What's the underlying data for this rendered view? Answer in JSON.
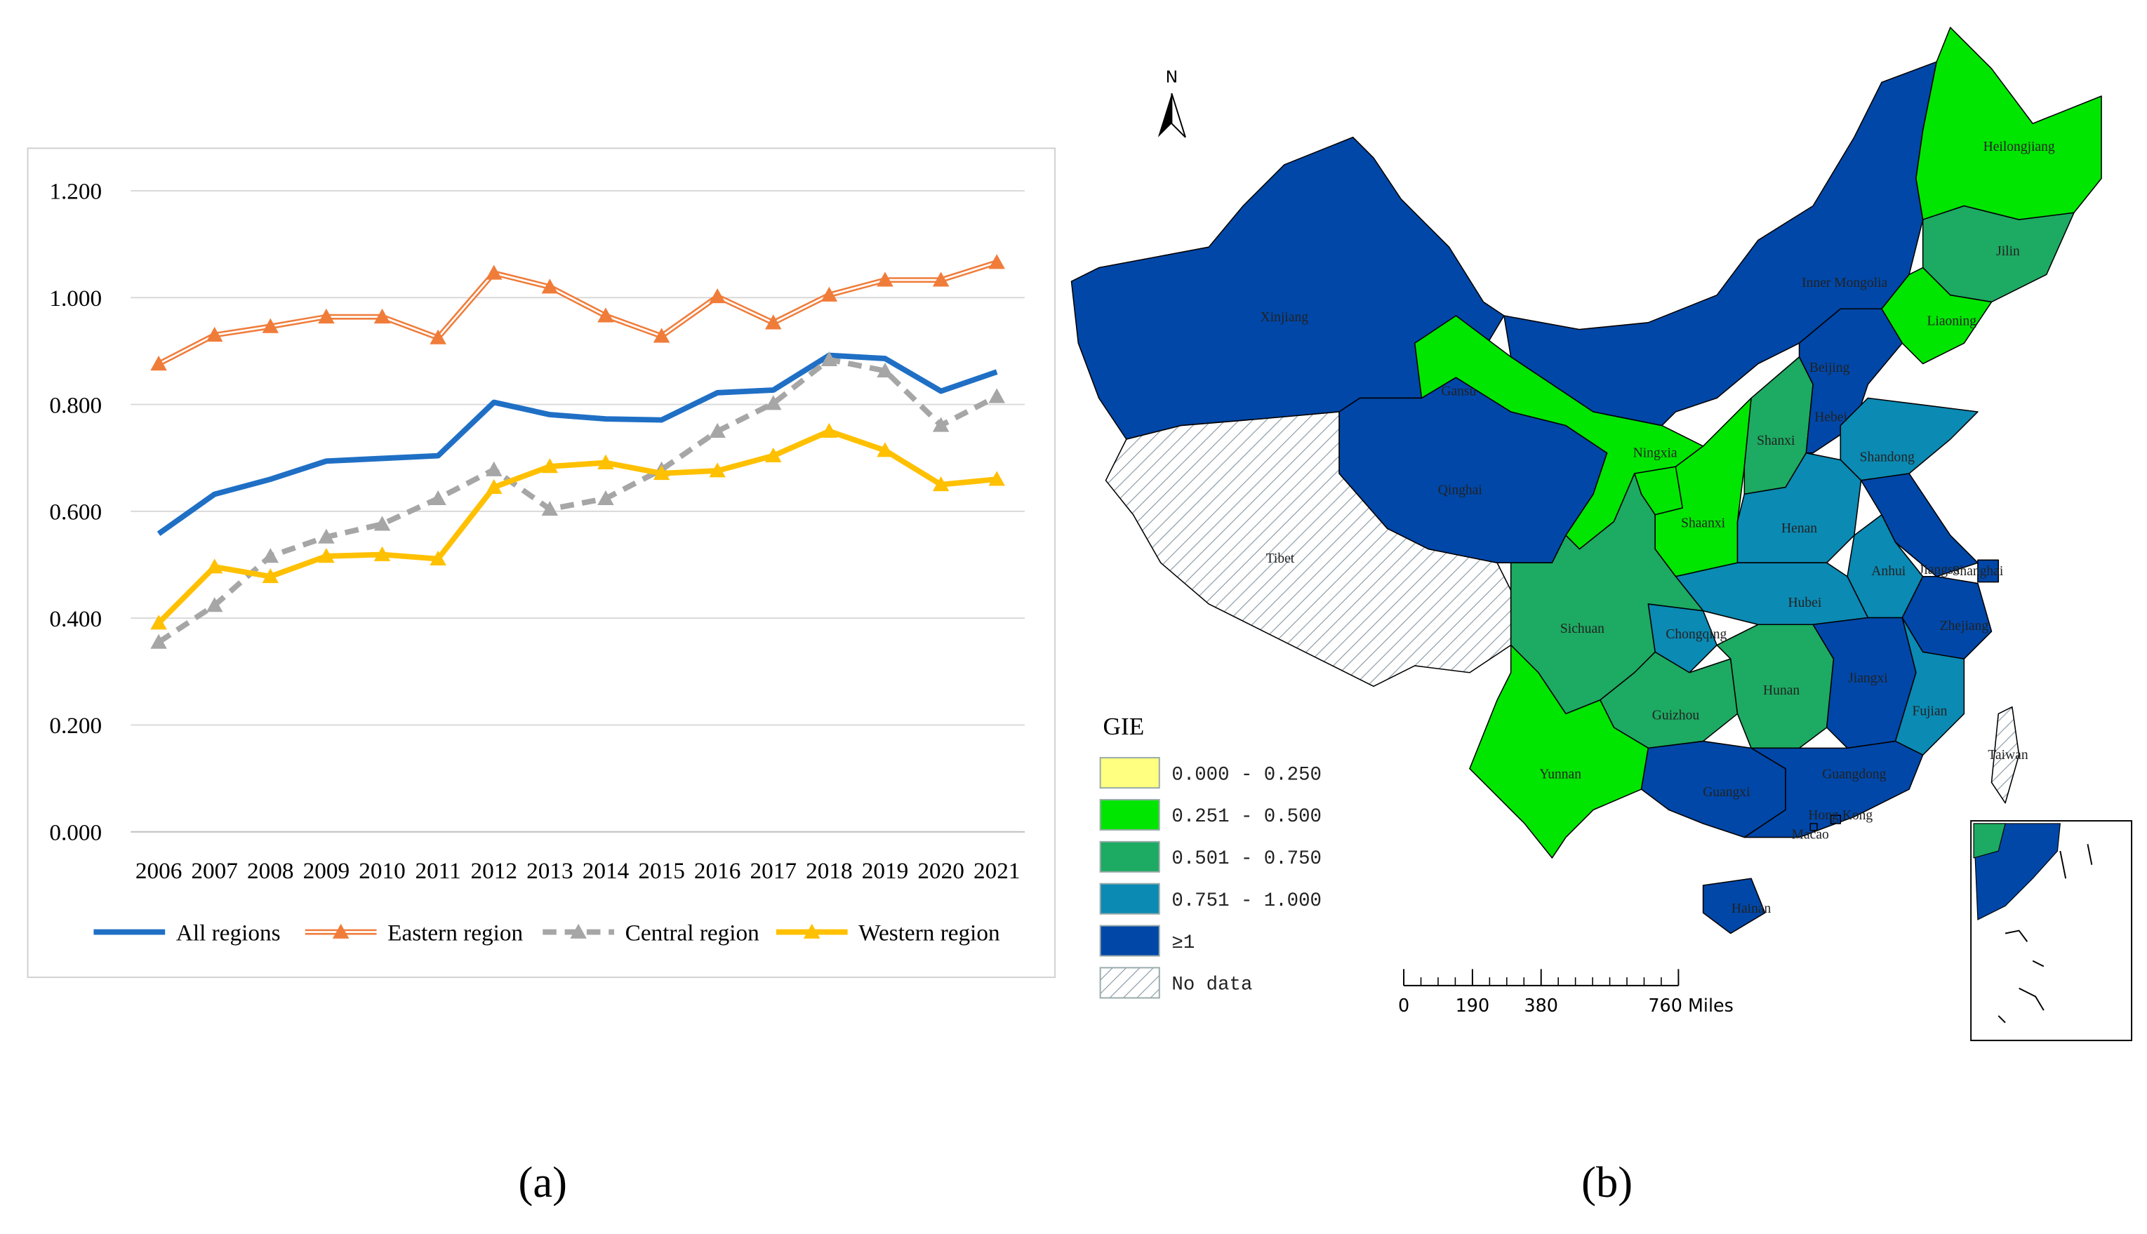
{
  "chart_data": {
    "type": "line",
    "categories": [
      "2006",
      "2007",
      "2008",
      "2009",
      "2010",
      "2011",
      "2012",
      "2013",
      "2014",
      "2015",
      "2016",
      "2017",
      "2018",
      "2019",
      "2020",
      "2021"
    ],
    "series": [
      {
        "name": "All regions",
        "color": "#1f6fc5",
        "values": [
          0.558,
          0.632,
          0.66,
          0.694,
          0.699,
          0.704,
          0.804,
          0.781,
          0.773,
          0.771,
          0.822,
          0.827,
          0.892,
          0.886,
          0.825,
          0.861
        ]
      },
      {
        "name": "Eastern region",
        "color": "#f07c3a",
        "values": [
          0.876,
          0.93,
          0.946,
          0.964,
          0.964,
          0.925,
          1.046,
          1.02,
          0.966,
          0.928,
          1.002,
          0.953,
          1.005,
          1.033,
          1.033,
          1.066
        ]
      },
      {
        "name": "Central region",
        "color": "#a6a6a6",
        "values": [
          0.355,
          0.424,
          0.516,
          0.552,
          0.576,
          0.624,
          0.678,
          0.604,
          0.624,
          0.678,
          0.75,
          0.802,
          0.884,
          0.863,
          0.761,
          0.815
        ]
      },
      {
        "name": "Western region",
        "color": "#ffc000",
        "values": [
          0.391,
          0.496,
          0.478,
          0.516,
          0.519,
          0.511,
          0.645,
          0.684,
          0.691,
          0.671,
          0.676,
          0.704,
          0.75,
          0.714,
          0.65,
          0.66
        ]
      }
    ],
    "ylim": [
      0,
      1.2
    ],
    "yticks": [
      {
        "value": 0,
        "label": "0.000"
      },
      {
        "value": 0.2,
        "label": "0.200"
      },
      {
        "value": 0.4,
        "label": "0.400"
      },
      {
        "value": 0.6,
        "label": "0.600"
      },
      {
        "value": 0.8,
        "label": "0.800"
      },
      {
        "value": 1.0,
        "label": "1.000"
      },
      {
        "value": 1.2,
        "label": "1.200"
      }
    ],
    "grid": true,
    "legend": "bottom",
    "caption": "(a)"
  },
  "map": {
    "north": "N",
    "legend_title": "GIE",
    "caption": "(b)",
    "classes": [
      {
        "label": "0.000 - 0.250",
        "color": "#ffff80"
      },
      {
        "label": "0.251 - 0.500",
        "color": "#00e600"
      },
      {
        "label": "0.501 - 0.750",
        "color": "#1daa62"
      },
      {
        "label": "0.751 - 1.000",
        "color": "#0b8ab3"
      },
      {
        "label": "≥1",
        "color": "#0047a8"
      },
      {
        "label": "No data",
        "color": "hatch"
      }
    ],
    "regions": [
      {
        "name": "Xinjiang",
        "class": "≥1"
      },
      {
        "name": "Tibet",
        "class": "No data"
      },
      {
        "name": "Qinghai",
        "class": "≥1"
      },
      {
        "name": "Gansu",
        "class": "0.251 - 0.500"
      },
      {
        "name": "Inner Mongolia",
        "class": "≥1"
      },
      {
        "name": "Heilongjiang",
        "class": "0.251 - 0.500"
      },
      {
        "name": "Jilin",
        "class": "0.501 - 0.750"
      },
      {
        "name": "Liaoning",
        "class": "0.251 - 0.500"
      },
      {
        "name": "Ningxia",
        "class": "0.251 - 0.500"
      },
      {
        "name": "Shaanxi",
        "class": "0.251 - 0.500"
      },
      {
        "name": "Shanxi",
        "class": "0.501 - 0.750"
      },
      {
        "name": "Beijing",
        "class": "≥1"
      },
      {
        "name": "Hebei",
        "class": "≥1"
      },
      {
        "name": "Shandong",
        "class": "0.751 - 1.000"
      },
      {
        "name": "Henan",
        "class": "0.751 - 1.000"
      },
      {
        "name": "Jiangsu",
        "class": "≥1"
      },
      {
        "name": "Anhui",
        "class": "0.751 - 1.000"
      },
      {
        "name": "Shanghai",
        "class": "≥1"
      },
      {
        "name": "Zhejiang",
        "class": "≥1"
      },
      {
        "name": "Hubei",
        "class": "0.751 - 1.000"
      },
      {
        "name": "Chongqing",
        "class": "0.751 - 1.000"
      },
      {
        "name": "Sichuan",
        "class": "0.501 - 0.750"
      },
      {
        "name": "Guizhou",
        "class": "0.501 - 0.750"
      },
      {
        "name": "Hunan",
        "class": "0.501 - 0.750"
      },
      {
        "name": "Jiangxi",
        "class": "≥1"
      },
      {
        "name": "Fujian",
        "class": "0.751 - 1.000"
      },
      {
        "name": "Yunnan",
        "class": "0.251 - 0.500"
      },
      {
        "name": "Guangxi",
        "class": "≥1"
      },
      {
        "name": "Guangdong",
        "class": "≥1"
      },
      {
        "name": "Hong Kong",
        "class": "≥1"
      },
      {
        "name": "Macao",
        "class": "≥1"
      },
      {
        "name": "Hainan",
        "class": "≥1"
      },
      {
        "name": "Taiwan",
        "class": "No data"
      }
    ],
    "scale_bar": [
      0,
      190,
      380,
      {
        "value": 760,
        "label": "760 Miles"
      }
    ]
  }
}
